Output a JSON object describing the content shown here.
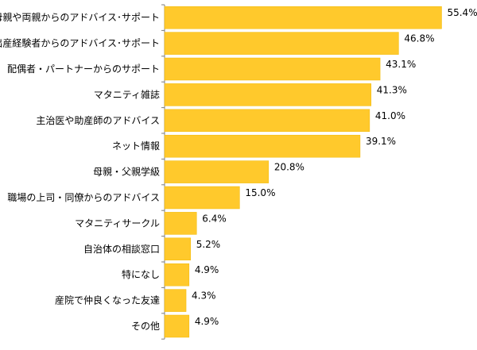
{
  "chart_data": {
    "type": "bar",
    "orientation": "horizontal",
    "categories": [
      "母親や両親からのアドバイス･サポート",
      "出産経験者からのアドバイス･サポート",
      "配偶者・パートナーからのサポート",
      "マタニティ雑誌",
      "主治医や助産師のアドバイス",
      "ネット情報",
      "母親・父親学級",
      "職場の上司・同僚からのアドバイス",
      "マタニティサークル",
      "自治体の相談窓口",
      "特になし",
      "産院で仲良くなった友達",
      "その他"
    ],
    "values": [
      55.4,
      46.8,
      43.1,
      41.3,
      41.0,
      39.1,
      20.8,
      15.0,
      6.4,
      5.2,
      4.9,
      4.3,
      4.9
    ],
    "value_labels": [
      "55.4%",
      "46.8%",
      "43.1%",
      "41.3%",
      "41.0%",
      "39.1%",
      "20.8%",
      "15.0%",
      "6.4%",
      "5.2%",
      "4.9%",
      "4.3%",
      "4.9%"
    ],
    "unit": "%",
    "xlim": [
      0,
      62
    ],
    "grid": false,
    "legend": "none",
    "title": "",
    "xlabel": "",
    "ylabel": "",
    "colors": {
      "bar": "#FFC92C",
      "bar_edge": "#F2B800",
      "axis": "#7F7F7F"
    }
  }
}
